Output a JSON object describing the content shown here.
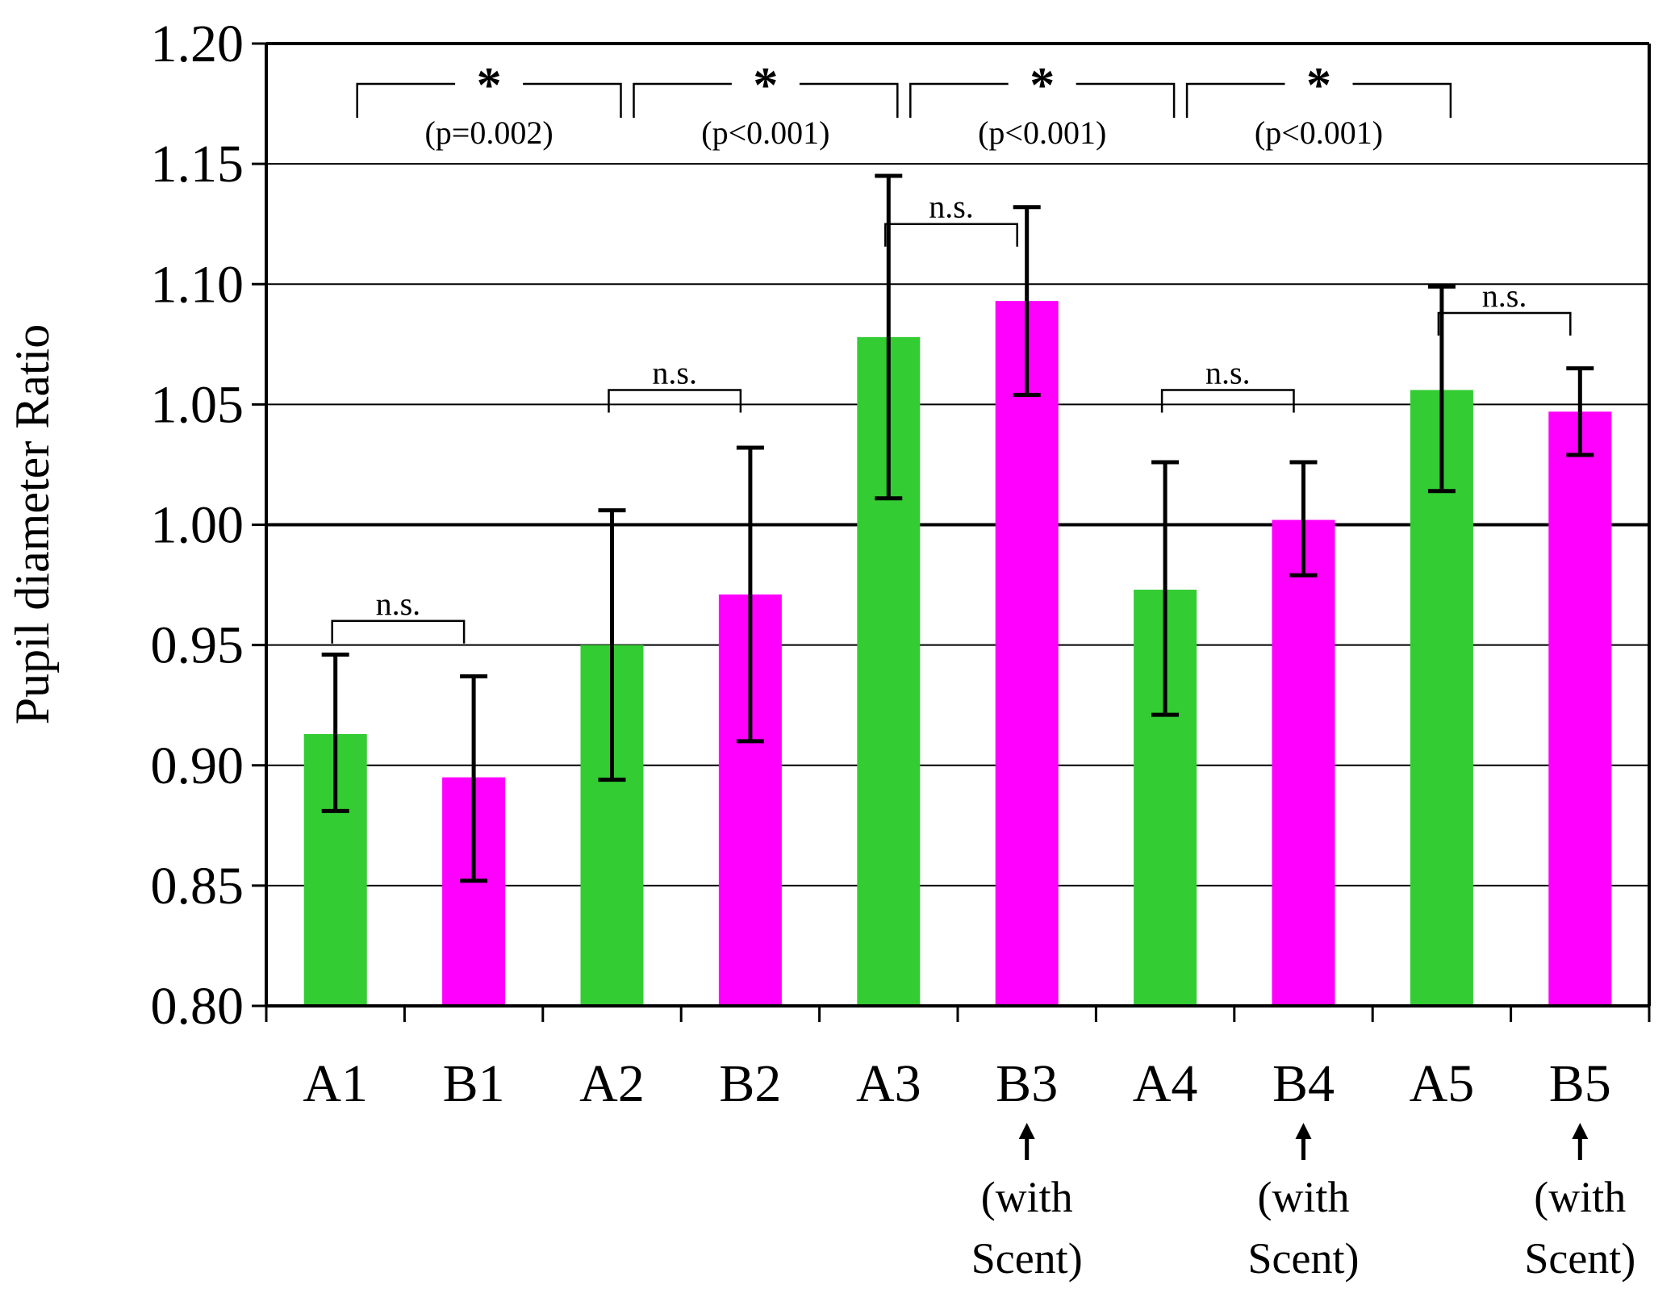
{
  "chart_data": {
    "type": "bar",
    "ylabel": "Pupil diameter Ratio",
    "ylim": [
      0.8,
      1.2
    ],
    "yticks": [
      0.8,
      0.85,
      0.9,
      0.95,
      1.0,
      1.05,
      1.1,
      1.15,
      1.2
    ],
    "ytick_labels": [
      "0.80",
      "0.85",
      "0.90",
      "0.95",
      "1.00",
      "1.05",
      "1.10",
      "1.15",
      "1.20"
    ],
    "grid": true,
    "categories": [
      "A1",
      "B1",
      "A2",
      "B2",
      "A3",
      "B3",
      "A4",
      "B4",
      "A5",
      "B5"
    ],
    "colors": {
      "A": "#33cc33",
      "B": "#ff00ff"
    },
    "bars": [
      {
        "label": "A1",
        "group": "A",
        "value": 0.913,
        "err_low": 0.881,
        "err_high": 0.946
      },
      {
        "label": "B1",
        "group": "B",
        "value": 0.895,
        "err_low": 0.852,
        "err_high": 0.937
      },
      {
        "label": "A2",
        "group": "A",
        "value": 0.95,
        "err_low": 0.894,
        "err_high": 1.006
      },
      {
        "label": "B2",
        "group": "B",
        "value": 0.971,
        "err_low": 0.91,
        "err_high": 1.032
      },
      {
        "label": "A3",
        "group": "A",
        "value": 1.078,
        "err_low": 1.011,
        "err_high": 1.145
      },
      {
        "label": "B3",
        "group": "B",
        "value": 1.093,
        "err_low": 1.054,
        "err_high": 1.132
      },
      {
        "label": "A4",
        "group": "A",
        "value": 0.973,
        "err_low": 0.921,
        "err_high": 1.026
      },
      {
        "label": "B4",
        "group": "B",
        "value": 1.002,
        "err_low": 0.979,
        "err_high": 1.026
      },
      {
        "label": "A5",
        "group": "A",
        "value": 1.056,
        "err_low": 1.014,
        "err_high": 1.099
      },
      {
        "label": "B5",
        "group": "B",
        "value": 1.047,
        "err_low": 1.029,
        "err_high": 1.065
      }
    ],
    "pair_annotations": [
      {
        "pair": [
          "A1",
          "B1"
        ],
        "text": "n.s.",
        "at": 0.96
      },
      {
        "pair": [
          "A2",
          "B2"
        ],
        "text": "n.s.",
        "at": 1.056
      },
      {
        "pair": [
          "A3",
          "B3"
        ],
        "text": "n.s.",
        "at": 1.125
      },
      {
        "pair": [
          "A4",
          "B4"
        ],
        "text": "n.s.",
        "at": 1.056
      },
      {
        "pair": [
          "A5",
          "B5"
        ],
        "text": "n.s.",
        "at": 1.088
      }
    ],
    "significance_annotations": [
      {
        "between": [
          "A1",
          "A2"
        ],
        "star": "*",
        "p": "(p=0.002)"
      },
      {
        "between": [
          "A2",
          "A3"
        ],
        "star": "*",
        "p": "(p<0.001)"
      },
      {
        "between": [
          "A3",
          "A4"
        ],
        "star": "*",
        "p": "(p<0.001)"
      },
      {
        "between": [
          "A4",
          "A5"
        ],
        "star": "*",
        "p": "(p<0.001)"
      }
    ],
    "scent_notes": [
      {
        "bar": "B3",
        "line1": "(with",
        "line2": "Scent)"
      },
      {
        "bar": "B4",
        "line1": "(with",
        "line2": "Scent)"
      },
      {
        "bar": "B5",
        "line1": "(with",
        "line2": "Scent)"
      }
    ]
  }
}
